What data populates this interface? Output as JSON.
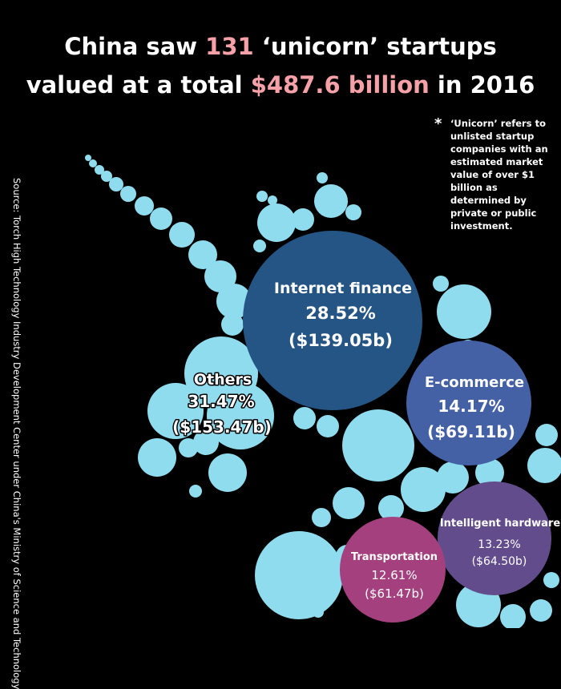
{
  "title": {
    "line1_pre": "China saw ",
    "line1_highlight": "131",
    "line1_post": " ‘unicorn’ startups",
    "line2_pre": "valued at a total ",
    "line2_highlight": "$487.6 billion",
    "line2_post": " in 2016"
  },
  "note": {
    "asterisk": "*",
    "text": "‘Unicorn’ refers to unlisted startup companies with an estimated market value of over $1 billion as determined by private or public investment."
  },
  "source": "Source: Torch High Technology Industry Development Center under China's Ministry of Science and Technology",
  "colors": {
    "background": "#000000",
    "highlight": "#f6a0a8",
    "small_bubbles": "#8fdcee",
    "internet_finance": "#245585",
    "e_commerce": "#4361a4",
    "intelligent_hardware": "#634c8c",
    "transportation": "#a4407e"
  },
  "chart_data": {
    "type": "bubble",
    "title": "China saw 131 ‘unicorn’ startups valued at a total $487.6 billion in 2016",
    "total_count": 131,
    "total_value_billion_usd": 487.6,
    "segments": [
      {
        "name": "Internet finance",
        "share_label": "28.52%",
        "value_label": "($139.05b)",
        "share_percent": 28.52,
        "value_billion_usd": 139.05,
        "color": "#245585"
      },
      {
        "name": "E-commerce",
        "share_label": "14.17%",
        "value_label": "($69.11b)",
        "share_percent": 14.17,
        "value_billion_usd": 69.11,
        "color": "#4361a4"
      },
      {
        "name": "Intelligent hardware",
        "share_label": "13.23%",
        "value_label": "($64.50b)",
        "share_percent": 13.23,
        "value_billion_usd": 64.5,
        "color": "#634c8c"
      },
      {
        "name": "Transportation",
        "share_label": "12.61%",
        "value_label": "($61.47b)",
        "share_percent": 12.61,
        "value_billion_usd": 61.47,
        "color": "#a4407e"
      },
      {
        "name": "Others",
        "share_label": "31.47%",
        "value_label": "($153.47b)",
        "share_percent": 31.47,
        "value_billion_usd": 153.47,
        "color": "#8fdcee"
      }
    ]
  }
}
